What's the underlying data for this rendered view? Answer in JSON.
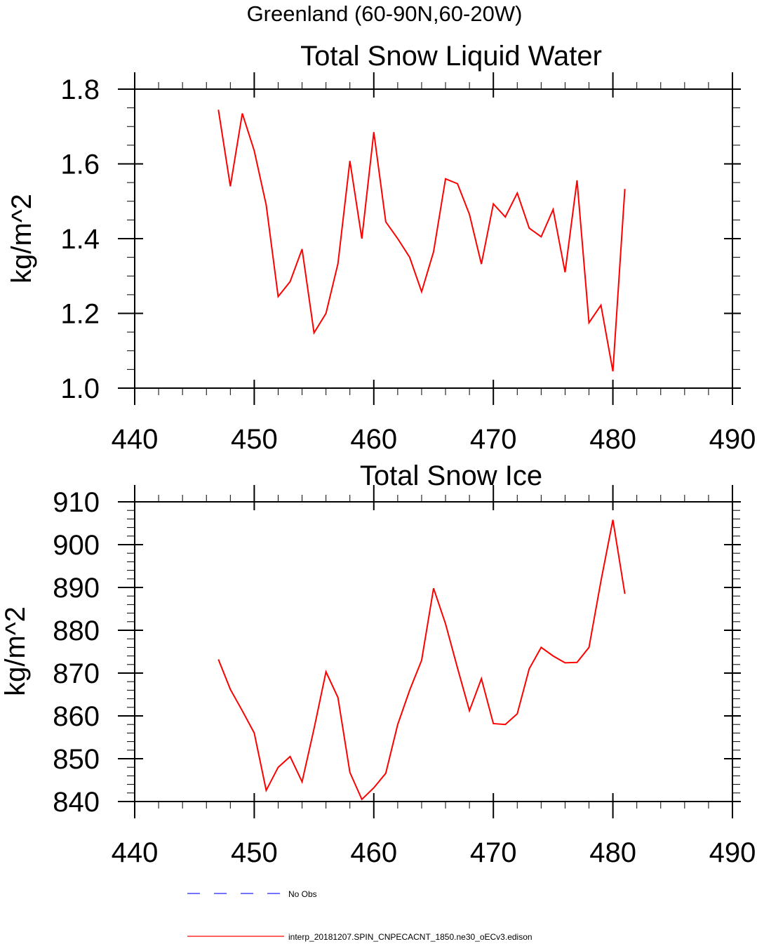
{
  "figure": {
    "title": "Greenland (60-90N,60-20W)"
  },
  "legend": [
    {
      "label": "No Obs",
      "color": "#2020ff",
      "style": "dashed"
    },
    {
      "label": "interp_20181207.SPIN_CNPECACNT_1850.ne30_oECv3.edison",
      "color": "#ff0000",
      "style": "solid"
    }
  ],
  "chart_data": [
    {
      "type": "line",
      "title": "Total Snow Liquid Water",
      "xlabel": "",
      "ylabel": "kg/m^2",
      "xlim": [
        440,
        490
      ],
      "ylim": [
        1.0,
        1.8
      ],
      "xticks": [
        440,
        450,
        460,
        470,
        480,
        490
      ],
      "xtick_labels": [
        "440",
        "450",
        "460",
        "470",
        "480",
        "490"
      ],
      "yticks": [
        1.0,
        1.2,
        1.4,
        1.6,
        1.8
      ],
      "ytick_labels": [
        "1.0",
        "1.2",
        "1.4",
        "1.6",
        "1.8"
      ],
      "y_minor_step": 0.05,
      "x_minor_step": 2,
      "series": [
        {
          "name": "interp_20181207.SPIN_CNPECACNT_1850.ne30_oECv3.edison",
          "color": "#ff0000",
          "x": [
            447,
            448,
            449,
            450,
            451,
            452,
            453,
            454,
            455,
            456,
            457,
            458,
            459,
            460,
            461,
            462,
            463,
            464,
            465,
            466,
            467,
            468,
            469,
            470,
            471,
            472,
            473,
            474,
            475,
            476,
            477,
            478,
            479,
            480,
            481
          ],
          "y": [
            1.745,
            1.54,
            1.735,
            1.635,
            1.49,
            1.245,
            1.285,
            1.372,
            1.148,
            1.2,
            1.333,
            1.608,
            1.4,
            1.685,
            1.445,
            1.4,
            1.35,
            1.258,
            1.365,
            1.56,
            1.547,
            1.465,
            1.332,
            1.493,
            1.458,
            1.522,
            1.428,
            1.405,
            1.478,
            1.31,
            1.556,
            1.175,
            1.222,
            1.045,
            1.533
          ]
        }
      ]
    },
    {
      "type": "line",
      "title": "Total Snow Ice",
      "xlabel": "",
      "ylabel": "kg/m^2",
      "xlim": [
        440,
        490
      ],
      "ylim": [
        840,
        910
      ],
      "xticks": [
        440,
        450,
        460,
        470,
        480,
        490
      ],
      "xtick_labels": [
        "440",
        "450",
        "460",
        "470",
        "480",
        "490"
      ],
      "yticks": [
        840,
        850,
        860,
        870,
        880,
        890,
        900,
        910
      ],
      "ytick_labels": [
        "840",
        "850",
        "860",
        "870",
        "880",
        "890",
        "900",
        "910"
      ],
      "y_minor_step": 2,
      "x_minor_step": 2,
      "series": [
        {
          "name": "interp_20181207.SPIN_CNPECACNT_1850.ne30_oECv3.edison",
          "color": "#ff0000",
          "x": [
            447,
            448,
            449,
            450,
            451,
            452,
            453,
            454,
            455,
            456,
            457,
            458,
            459,
            460,
            461,
            462,
            463,
            464,
            465,
            466,
            467,
            468,
            469,
            470,
            471,
            472,
            473,
            474,
            475,
            476,
            477,
            478,
            479,
            480,
            481
          ],
          "y": [
            873.2,
            866.2,
            861.2,
            856,
            842.6,
            848,
            850.5,
            844.6,
            857,
            870.3,
            864.3,
            846.8,
            840.5,
            843.2,
            846.6,
            858,
            866,
            873,
            889.8,
            881.5,
            871.2,
            861.2,
            868.7,
            858.2,
            858,
            860.5,
            871,
            876,
            874,
            872.4,
            872.5,
            876,
            891.5,
            905.8,
            888.5
          ]
        }
      ]
    }
  ]
}
